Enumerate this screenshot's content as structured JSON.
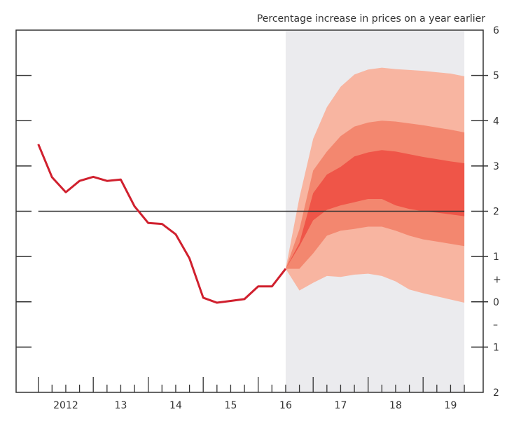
{
  "chart_data": {
    "type": "area",
    "title": "Percentage increase in prices on a year earlier",
    "x_tick_labels": [
      {
        "x": 2012.5,
        "label": "2012"
      },
      {
        "x": 2013.5,
        "label": "13"
      },
      {
        "x": 2014.5,
        "label": "14"
      },
      {
        "x": 2015.5,
        "label": "15"
      },
      {
        "x": 2016.5,
        "label": "16"
      },
      {
        "x": 2017.5,
        "label": "17"
      },
      {
        "x": 2018.5,
        "label": "18"
      },
      {
        "x": 2019.5,
        "label": "19"
      }
    ],
    "y_tick_labels": [
      {
        "y": 6,
        "label": "6"
      },
      {
        "y": 5,
        "label": "5"
      },
      {
        "y": 4,
        "label": "4"
      },
      {
        "y": 3,
        "label": "3"
      },
      {
        "y": 2,
        "label": "2"
      },
      {
        "y": 1,
        "label": "1"
      },
      {
        "y": 0.5,
        "label": "+"
      },
      {
        "y": 0,
        "label": "0"
      },
      {
        "y": -0.5,
        "label": "–"
      },
      {
        "y": -1,
        "label": "1"
      },
      {
        "y": -2,
        "label": "2"
      }
    ],
    "xlim": [
      2011.6,
      2020.2
    ],
    "ylim": [
      -2,
      6
    ],
    "y_axis_side": "right",
    "reference_line": 2,
    "projection_shade": {
      "x": [
        2016.5,
        2019.75
      ],
      "color": "#ebebee"
    },
    "history": {
      "color": "#d0202e",
      "x": [
        2012.0,
        2012.25,
        2012.5,
        2012.75,
        2013.0,
        2013.25,
        2013.5,
        2013.75,
        2014.0,
        2014.25,
        2014.5,
        2014.75,
        2015.0,
        2015.25,
        2015.5,
        2015.75,
        2016.0,
        2016.25,
        2016.5
      ],
      "y": [
        3.48,
        2.75,
        2.42,
        2.67,
        2.76,
        2.67,
        2.7,
        2.11,
        1.74,
        1.72,
        1.49,
        0.96,
        0.09,
        -0.02,
        0.02,
        0.06,
        0.34,
        0.34,
        0.73
      ]
    },
    "fan": {
      "x": [
        2016.5,
        2016.75,
        2017.0,
        2017.25,
        2017.5,
        2017.75,
        2018.0,
        2018.25,
        2018.5,
        2018.75,
        2019.0,
        2019.25,
        2019.5,
        2019.75
      ],
      "bands": [
        {
          "color": "#f8b5a1",
          "upper": [
            0.73,
            2.3,
            3.6,
            4.3,
            4.75,
            5.02,
            5.13,
            5.17,
            5.14,
            5.12,
            5.1,
            5.07,
            5.04,
            4.98
          ],
          "lower": [
            0.73,
            0.25,
            0.42,
            0.57,
            0.55,
            0.6,
            0.62,
            0.57,
            0.45,
            0.27,
            0.19,
            0.12,
            0.05,
            -0.02
          ]
        },
        {
          "color": "#f3876f",
          "upper": [
            0.73,
            1.6,
            2.9,
            3.32,
            3.66,
            3.87,
            3.96,
            4.0,
            3.98,
            3.94,
            3.9,
            3.85,
            3.8,
            3.74
          ],
          "lower": [
            0.73,
            0.73,
            1.07,
            1.46,
            1.57,
            1.61,
            1.66,
            1.66,
            1.57,
            1.46,
            1.38,
            1.33,
            1.28,
            1.23
          ]
        },
        {
          "color": "#ef5548",
          "upper": [
            0.73,
            1.3,
            2.4,
            2.81,
            2.98,
            3.21,
            3.3,
            3.35,
            3.32,
            3.26,
            3.2,
            3.15,
            3.1,
            3.06
          ],
          "lower": [
            0.73,
            1.23,
            1.8,
            2.03,
            2.13,
            2.2,
            2.27,
            2.27,
            2.13,
            2.05,
            2.0,
            1.97,
            1.93,
            1.89
          ]
        }
      ]
    }
  }
}
